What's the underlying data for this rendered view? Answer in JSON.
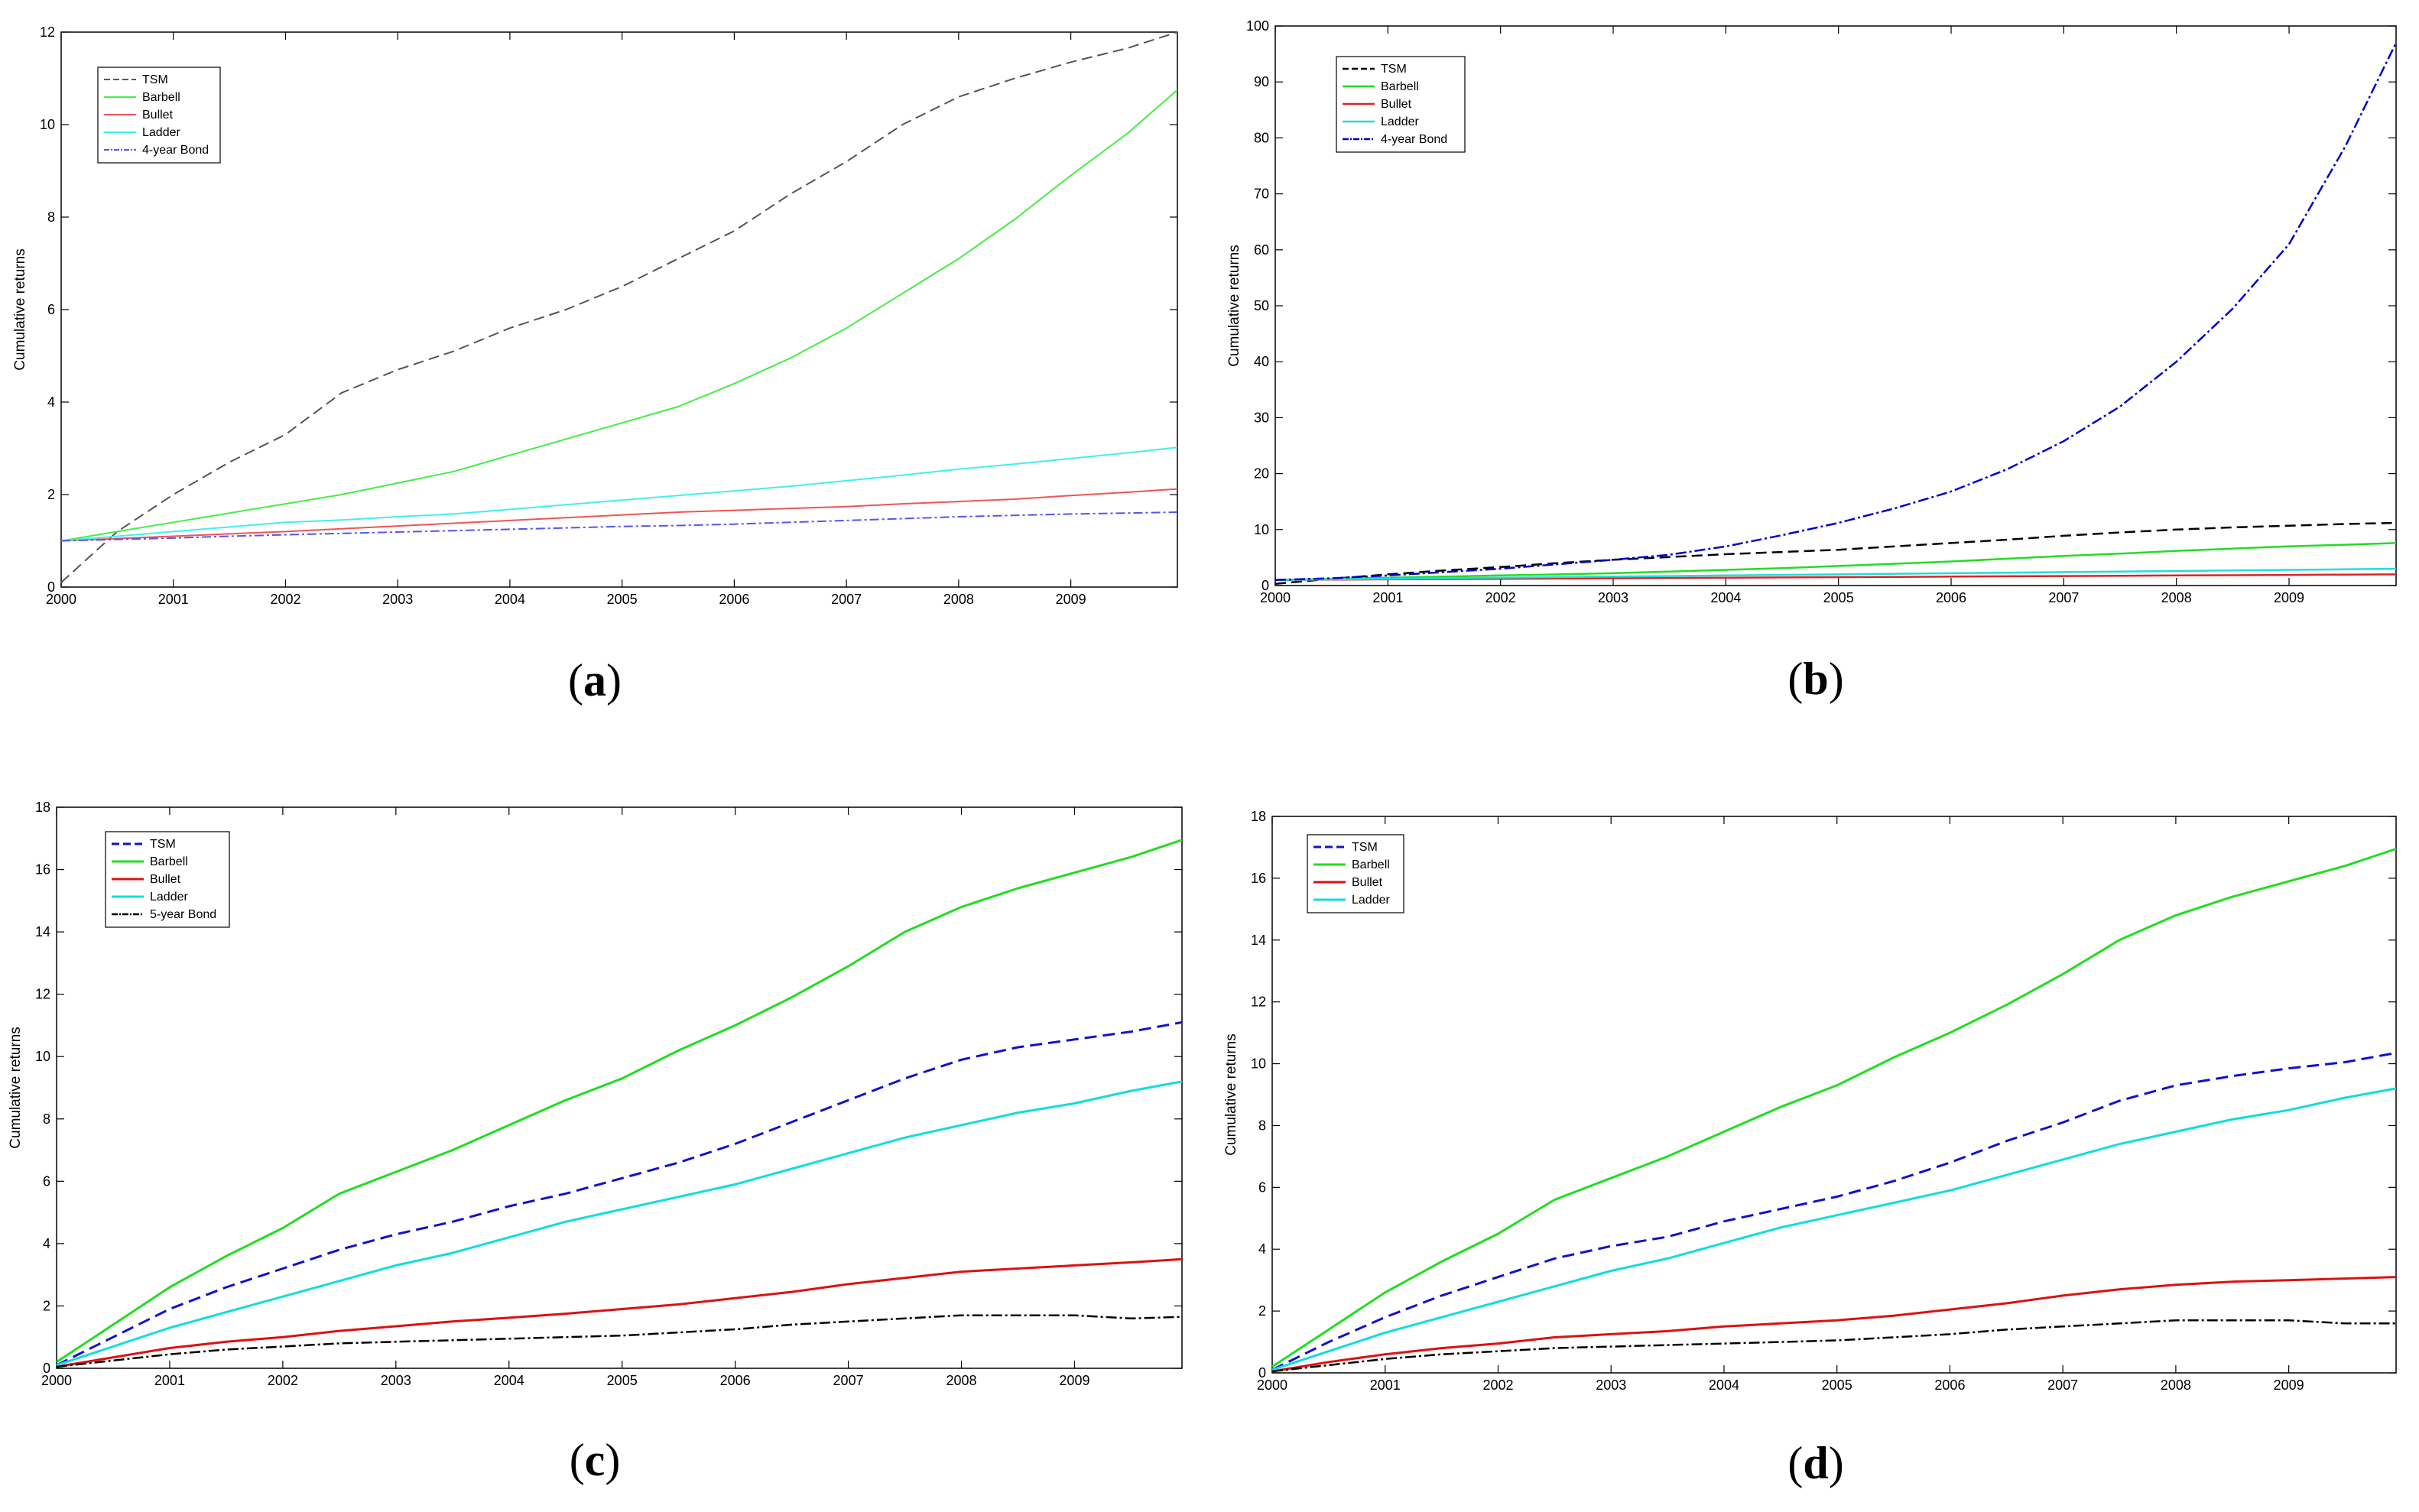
{
  "chart_data": [
    {
      "id": "a",
      "caption": "(a)",
      "type": "line",
      "ylabel": "Cumulative returns",
      "xlabel": "",
      "xlim": [
        2000,
        2009.95
      ],
      "ylim": [
        0,
        12
      ],
      "xticks": [
        "2000",
        "2001",
        "2002",
        "2003",
        "2004",
        "2005",
        "2006",
        "2007",
        "2008",
        "2009"
      ],
      "yticks": [
        "0",
        "2",
        "4",
        "6",
        "8",
        "10",
        "12"
      ],
      "legend_position": "top-left",
      "x": [
        2000,
        2000.5,
        2001,
        2001.5,
        2002,
        2002.5,
        2003,
        2003.5,
        2004,
        2004.5,
        2005,
        2005.5,
        2006,
        2006.5,
        2007,
        2007.5,
        2008,
        2008.5,
        2009,
        2009.5,
        2009.95
      ],
      "series": [
        {
          "name": "TSM",
          "color": "#555555",
          "dash": "14,7",
          "width": 2,
          "values": [
            0.1,
            1.2,
            2.0,
            2.7,
            3.3,
            4.2,
            4.7,
            5.1,
            5.6,
            6.0,
            6.5,
            7.1,
            7.7,
            8.5,
            9.2,
            10.0,
            10.6,
            11.0,
            11.35,
            11.65,
            12.0
          ]
        },
        {
          "name": "Barbell",
          "color": "#44ee44",
          "dash": "",
          "width": 2,
          "values": [
            1.0,
            1.2,
            1.4,
            1.6,
            1.8,
            2.0,
            2.25,
            2.5,
            2.85,
            3.2,
            3.55,
            3.9,
            4.4,
            4.95,
            5.6,
            6.35,
            7.1,
            7.95,
            8.9,
            9.8,
            10.75
          ]
        },
        {
          "name": "Bullet",
          "color": "#ee5555",
          "dash": "",
          "width": 2,
          "values": [
            1.0,
            1.05,
            1.1,
            1.15,
            1.2,
            1.26,
            1.32,
            1.38,
            1.44,
            1.5,
            1.56,
            1.62,
            1.66,
            1.7,
            1.74,
            1.8,
            1.85,
            1.9,
            1.98,
            2.05,
            2.12
          ]
        },
        {
          "name": "Ladder",
          "color": "#44eeee",
          "dash": "",
          "width": 2,
          "values": [
            1.0,
            1.1,
            1.2,
            1.3,
            1.4,
            1.45,
            1.52,
            1.58,
            1.68,
            1.78,
            1.88,
            1.98,
            2.08,
            2.18,
            2.3,
            2.42,
            2.55,
            2.66,
            2.78,
            2.9,
            3.02
          ]
        },
        {
          "name": "4-year Bond",
          "color": "#5555ee",
          "dash": "12,4,3,4",
          "width": 2,
          "values": [
            1.0,
            1.03,
            1.06,
            1.1,
            1.13,
            1.16,
            1.19,
            1.22,
            1.25,
            1.28,
            1.31,
            1.33,
            1.36,
            1.4,
            1.44,
            1.48,
            1.52,
            1.55,
            1.58,
            1.6,
            1.62
          ]
        }
      ]
    },
    {
      "id": "b",
      "caption": "(b)",
      "type": "line",
      "ylabel": "Cumulative returns",
      "xlabel": "",
      "xlim": [
        2000,
        2009.95
      ],
      "ylim": [
        0,
        100
      ],
      "xticks": [
        "2000",
        "2001",
        "2002",
        "2003",
        "2004",
        "2005",
        "2006",
        "2007",
        "2008",
        "2009"
      ],
      "yticks": [
        "0",
        "10",
        "20",
        "30",
        "40",
        "50",
        "60",
        "70",
        "80",
        "90",
        "100"
      ],
      "legend_position": "top-left",
      "x": [
        2000,
        2000.5,
        2001,
        2001.5,
        2002,
        2002.5,
        2003,
        2003.5,
        2004,
        2004.5,
        2005,
        2005.5,
        2006,
        2006.5,
        2007,
        2007.5,
        2008,
        2008.5,
        2009,
        2009.5,
        2009.95
      ],
      "series": [
        {
          "name": "TSM",
          "color": "#000000",
          "dash": "14,7",
          "width": 2.5,
          "values": [
            0.3,
            1.2,
            2.0,
            2.7,
            3.3,
            4.0,
            4.6,
            5.1,
            5.6,
            6.0,
            6.4,
            7.0,
            7.6,
            8.2,
            8.9,
            9.5,
            10.0,
            10.4,
            10.7,
            11.0,
            11.2
          ]
        },
        {
          "name": "Barbell",
          "color": "#22dd22",
          "dash": "",
          "width": 2.5,
          "values": [
            1.0,
            1.2,
            1.4,
            1.6,
            1.8,
            2.0,
            2.2,
            2.5,
            2.8,
            3.1,
            3.5,
            3.9,
            4.3,
            4.8,
            5.3,
            5.7,
            6.2,
            6.6,
            7.0,
            7.3,
            7.6
          ]
        },
        {
          "name": "Bullet",
          "color": "#dd2222",
          "dash": "",
          "width": 2.5,
          "values": [
            1.0,
            1.05,
            1.1,
            1.15,
            1.2,
            1.25,
            1.3,
            1.35,
            1.4,
            1.45,
            1.5,
            1.55,
            1.6,
            1.65,
            1.7,
            1.75,
            1.8,
            1.85,
            1.9,
            1.95,
            2.0
          ]
        },
        {
          "name": "Ladder",
          "color": "#22dddd",
          "dash": "",
          "width": 2.5,
          "values": [
            1.0,
            1.1,
            1.2,
            1.3,
            1.4,
            1.5,
            1.6,
            1.7,
            1.8,
            1.9,
            2.0,
            2.1,
            2.2,
            2.3,
            2.4,
            2.5,
            2.6,
            2.7,
            2.8,
            2.9,
            3.0
          ]
        },
        {
          "name": "4-year Bond",
          "color": "#0000cc",
          "dash": "14,4,3,4",
          "width": 2.5,
          "values": [
            1.0,
            1.3,
            1.8,
            2.4,
            3.0,
            3.8,
            4.6,
            5.5,
            7.0,
            9.0,
            11.2,
            13.8,
            16.8,
            20.8,
            25.8,
            32.0,
            40.0,
            49.5,
            61.0,
            78.5,
            97.0
          ]
        }
      ]
    },
    {
      "id": "c",
      "caption": "(c)",
      "type": "line",
      "ylabel": "Cumulative returns",
      "xlabel": "",
      "xlim": [
        2000,
        2009.95
      ],
      "ylim": [
        0,
        18
      ],
      "xticks": [
        "2000",
        "2001",
        "2002",
        "2003",
        "2004",
        "2005",
        "2006",
        "2007",
        "2008",
        "2009"
      ],
      "yticks": [
        "0",
        "2",
        "4",
        "6",
        "8",
        "10",
        "12",
        "14",
        "16",
        "18"
      ],
      "legend_position": "top-left",
      "x": [
        2000,
        2000.5,
        2001,
        2001.5,
        2002,
        2002.5,
        2003,
        2003.5,
        2004,
        2004.5,
        2005,
        2005.5,
        2006,
        2006.5,
        2007,
        2007.5,
        2008,
        2008.5,
        2009,
        2009.5,
        2009.95
      ],
      "series": [
        {
          "name": "TSM",
          "color": "#1111cc",
          "dash": "16,8",
          "width": 3,
          "values": [
            0.1,
            1.0,
            1.9,
            2.6,
            3.2,
            3.8,
            4.3,
            4.7,
            5.2,
            5.6,
            6.1,
            6.6,
            7.2,
            7.9,
            8.6,
            9.3,
            9.9,
            10.3,
            10.55,
            10.8,
            11.1
          ]
        },
        {
          "name": "Barbell",
          "color": "#22dd22",
          "dash": "",
          "width": 3,
          "values": [
            0.2,
            1.4,
            2.6,
            3.6,
            4.5,
            5.6,
            6.3,
            7.0,
            7.8,
            8.6,
            9.3,
            10.2,
            11.0,
            11.9,
            12.9,
            14.0,
            14.8,
            15.4,
            15.9,
            16.4,
            16.95
          ]
        },
        {
          "name": "Bullet",
          "color": "#dd1111",
          "dash": "",
          "width": 3,
          "values": [
            0.05,
            0.35,
            0.65,
            0.85,
            1.0,
            1.2,
            1.35,
            1.5,
            1.62,
            1.75,
            1.9,
            2.05,
            2.25,
            2.45,
            2.7,
            2.9,
            3.1,
            3.2,
            3.3,
            3.4,
            3.5
          ]
        },
        {
          "name": "Ladder",
          "color": "#11dddd",
          "dash": "",
          "width": 3,
          "values": [
            0.1,
            0.7,
            1.3,
            1.8,
            2.3,
            2.8,
            3.3,
            3.7,
            4.2,
            4.7,
            5.1,
            5.5,
            5.9,
            6.4,
            6.9,
            7.4,
            7.8,
            8.2,
            8.5,
            8.9,
            9.2
          ]
        },
        {
          "name": "5-year Bond",
          "color": "#000000",
          "dash": "14,4,3,4",
          "width": 2.5,
          "values": [
            0.05,
            0.25,
            0.45,
            0.6,
            0.7,
            0.8,
            0.85,
            0.9,
            0.95,
            1.0,
            1.05,
            1.15,
            1.25,
            1.4,
            1.5,
            1.6,
            1.7,
            1.7,
            1.7,
            1.6,
            1.65
          ]
        }
      ]
    },
    {
      "id": "d",
      "caption": "(d)",
      "type": "line",
      "ylabel": "Cumulative returns",
      "xlabel": "",
      "xlim": [
        2000,
        2009.95
      ],
      "ylim": [
        0,
        18
      ],
      "xticks": [
        "2000",
        "2001",
        "2002",
        "2003",
        "2004",
        "2005",
        "2006",
        "2007",
        "2008",
        "2009"
      ],
      "yticks": [
        "0",
        "2",
        "4",
        "6",
        "8",
        "10",
        "12",
        "14",
        "16",
        "18"
      ],
      "legend_position": "top-left",
      "x": [
        2000,
        2000.5,
        2001,
        2001.5,
        2002,
        2002.5,
        2003,
        2003.5,
        2004,
        2004.5,
        2005,
        2005.5,
        2006,
        2006.5,
        2007,
        2007.5,
        2008,
        2008.5,
        2009,
        2009.5,
        2009.95
      ],
      "series": [
        {
          "name": "TSM",
          "color": "#1111cc",
          "dash": "16,8",
          "width": 3,
          "values": [
            0.1,
            1.0,
            1.8,
            2.5,
            3.1,
            3.7,
            4.1,
            4.4,
            4.9,
            5.3,
            5.7,
            6.2,
            6.8,
            7.5,
            8.1,
            8.8,
            9.3,
            9.6,
            9.85,
            10.05,
            10.35
          ]
        },
        {
          "name": "Barbell",
          "color": "#22dd22",
          "dash": "",
          "width": 3,
          "values": [
            0.2,
            1.4,
            2.6,
            3.6,
            4.5,
            5.6,
            6.3,
            7.0,
            7.8,
            8.6,
            9.3,
            10.2,
            11.0,
            11.9,
            12.9,
            14.0,
            14.8,
            15.4,
            15.9,
            16.4,
            16.95
          ]
        },
        {
          "name": "Bullet",
          "color": "#dd1111",
          "dash": "",
          "width": 3,
          "values": [
            0.05,
            0.35,
            0.6,
            0.8,
            0.95,
            1.15,
            1.25,
            1.35,
            1.5,
            1.6,
            1.7,
            1.85,
            2.05,
            2.25,
            2.5,
            2.7,
            2.85,
            2.95,
            3.0,
            3.05,
            3.1
          ]
        },
        {
          "name": "Ladder",
          "color": "#11dddd",
          "dash": "",
          "width": 3,
          "values": [
            0.1,
            0.7,
            1.3,
            1.8,
            2.3,
            2.8,
            3.3,
            3.7,
            4.2,
            4.7,
            5.1,
            5.5,
            5.9,
            6.4,
            6.9,
            7.4,
            7.8,
            8.2,
            8.5,
            8.9,
            9.2
          ]
        },
        {
          "name": "",
          "color": "#000000",
          "dash": "14,4,3,4",
          "width": 2.5,
          "values": [
            0.05,
            0.25,
            0.45,
            0.6,
            0.7,
            0.8,
            0.85,
            0.9,
            0.95,
            1.0,
            1.05,
            1.15,
            1.25,
            1.4,
            1.5,
            1.6,
            1.7,
            1.7,
            1.7,
            1.6,
            1.6
          ]
        }
      ]
    }
  ]
}
